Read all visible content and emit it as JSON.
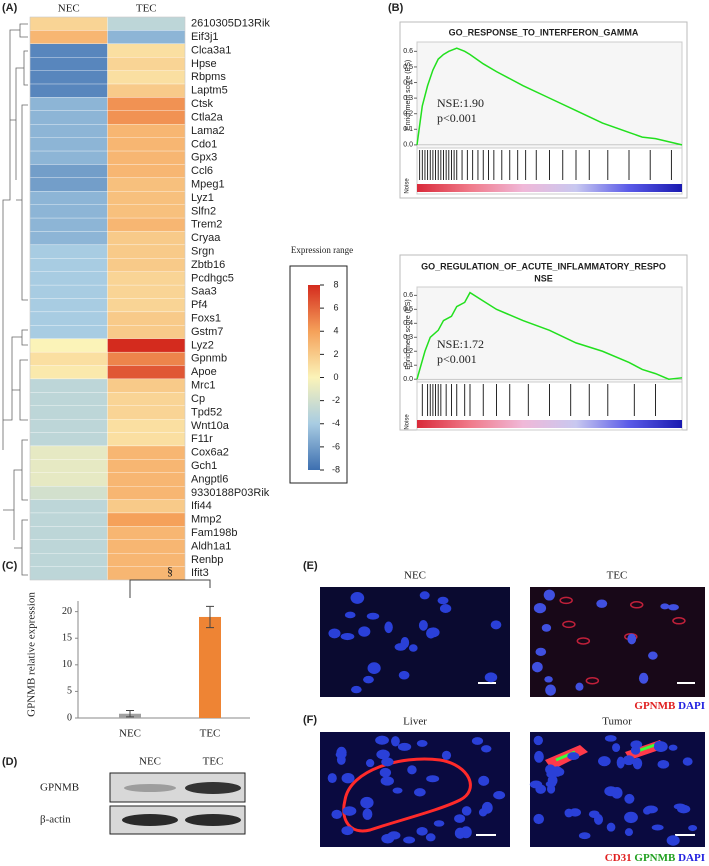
{
  "chart_data": [
    {
      "type": "heatmap",
      "categories": [
        "2610305D13Rik",
        "Eif3j1",
        "Clca3a1",
        "Hpse",
        "Rbpms",
        "Laptm5",
        "Ctsk",
        "Ctla2a",
        "Lama2",
        "Cdo1",
        "Gpx3",
        "Ccl6",
        "Mpeg1",
        "Lyz1",
        "Slfn2",
        "Trem2",
        "Cryaa",
        "Srgn",
        "Zbtb16",
        "Pcdhgc5",
        "Saa3",
        "Pf4",
        "Foxs1",
        "Gstm7",
        "Lyz2",
        "Gpnmb",
        "Apoe",
        "Mrc1",
        "Cp",
        "Tpd52",
        "Wnt10a",
        "F11r",
        "Cox6a2",
        "Gch1",
        "Angptl6",
        "9330188P03Rik",
        "Ifi44",
        "Mmp2",
        "Fam198b",
        "Aldh1a1",
        "Renbp",
        "Ifit3"
      ],
      "series": [
        {
          "name": "NEC",
          "values": [
            1.5,
            3,
            -7,
            -7,
            -7,
            -7,
            -5,
            -5,
            -5,
            -5,
            -5,
            -6,
            -6,
            -5,
            -5,
            -5,
            -5,
            -4,
            -4,
            -4,
            -4,
            -4,
            -4,
            -4,
            0,
            1,
            0.5,
            -3,
            -3,
            -3,
            -3,
            -3,
            -1,
            -1,
            -1,
            -2,
            -3,
            -3,
            -3,
            -3,
            -3,
            -3
          ]
        },
        {
          "name": "TEC",
          "values": [
            -3,
            -5,
            1,
            1.5,
            1,
            2,
            4.5,
            4.5,
            3,
            3,
            3,
            3,
            2.5,
            2.5,
            2.5,
            3,
            2,
            2,
            2,
            1.5,
            1.5,
            1.5,
            2,
            2,
            8,
            5,
            6.5,
            2,
            1.5,
            1.5,
            1,
            1,
            3,
            3,
            3,
            3,
            2,
            4,
            3,
            3,
            3,
            3
          ]
        }
      ],
      "colorbar_label": "Expression range",
      "clim": [
        -8,
        8
      ],
      "colorbar_ticks": [
        8,
        6,
        4,
        2,
        0,
        -2,
        -4,
        -6,
        -8
      ],
      "colors": [
        "#3d6fb0",
        "#a8cce2",
        "#fbf3b8",
        "#f5a15a",
        "#d42b1e"
      ]
    },
    {
      "type": "gsea",
      "title": "GO_RESPONSE_TO_INTERFERON_GAMMA",
      "ylabel": "Enrichment score (ES)",
      "hits_label": "Noise",
      "annotations": [
        "NSE:1.90",
        "p<0.001"
      ],
      "color": "#22e01e",
      "x": [
        0,
        2,
        4,
        6,
        8,
        10,
        12,
        15,
        18,
        20,
        25,
        30,
        40,
        50,
        60,
        70,
        80,
        85,
        90,
        95,
        100
      ],
      "values": [
        0,
        0.25,
        0.38,
        0.48,
        0.55,
        0.58,
        0.6,
        0.62,
        0.6,
        0.58,
        0.52,
        0.47,
        0.38,
        0.3,
        0.22,
        0.14,
        0.08,
        0.05,
        0.04,
        0.02,
        0
      ],
      "hits": [
        1,
        2,
        3,
        4,
        5,
        6,
        7,
        8,
        9,
        10,
        11,
        12,
        13,
        14,
        15,
        17,
        19,
        21,
        23,
        25,
        27,
        29,
        32,
        35,
        38,
        41,
        45,
        50,
        55,
        60,
        65,
        72,
        80,
        88,
        96
      ],
      "xlim": [
        0,
        100
      ],
      "ylim": [
        -0.02,
        0.66
      ],
      "yticks": [
        {
          "value": 0,
          "label": "0.0"
        },
        0.1,
        0.2,
        0.3,
        0.4,
        0.5,
        0.6
      ]
    },
    {
      "type": "gsea",
      "title": [
        "GO_REGULATION_OF_ACUTE_INFLAMMATORY_RESPO",
        "NSE"
      ],
      "ylabel": "Enrichment score (ES)",
      "hits_label": "Noise",
      "annotations": [
        "NSE:1.72",
        "p<0.001"
      ],
      "color": "#22e01e",
      "x": [
        0,
        3,
        5,
        8,
        10,
        13,
        15,
        18,
        20,
        25,
        30,
        40,
        50,
        60,
        70,
        80,
        85,
        90,
        95,
        100
      ],
      "values": [
        0,
        0.2,
        0.3,
        0.35,
        0.42,
        0.45,
        0.52,
        0.55,
        0.62,
        0.56,
        0.5,
        0.42,
        0.35,
        0.26,
        0.2,
        0.12,
        0.07,
        0.04,
        0,
        0.01
      ],
      "hits": [
        2,
        4,
        5,
        6,
        7,
        8,
        9,
        11,
        13,
        15,
        18,
        20,
        25,
        30,
        35,
        42,
        50,
        58,
        65,
        72,
        82,
        90
      ],
      "xlim": [
        0,
        100
      ],
      "ylim": [
        -0.02,
        0.66
      ],
      "yticks": [
        {
          "value": 0,
          "label": "0.0"
        },
        0.1,
        0.2,
        0.3,
        0.4,
        0.5,
        0.6
      ]
    },
    {
      "type": "bar",
      "ylabel": "GPNMB relative expression",
      "annotation": "§",
      "categories": [
        "NEC",
        "TEC"
      ],
      "values": [
        0.8,
        19
      ],
      "errors": [
        0.6,
        2
      ],
      "colors": [
        "#a0a0a0",
        "#ee8434"
      ],
      "ylim": [
        0,
        22
      ],
      "yticks": [
        0,
        5,
        10,
        15,
        20
      ]
    }
  ],
  "panel_labels": [
    "(A)",
    "(B)",
    "(C)",
    "(D)",
    "(E)",
    "(F)"
  ],
  "blot": {
    "lanes": [
      "NEC",
      "TEC"
    ],
    "rows": [
      "GPNMB",
      "β-actin"
    ]
  },
  "micrographs": {
    "e_labels": [
      "NEC",
      "TEC"
    ],
    "e_stain": [
      "GPNMB",
      "DAPI"
    ],
    "f_labels": [
      "Liver",
      "Tumor"
    ],
    "f_stain": [
      "CD31",
      "GPNMB",
      "DAPI"
    ]
  }
}
